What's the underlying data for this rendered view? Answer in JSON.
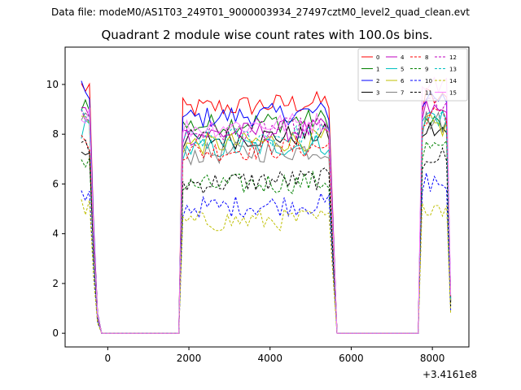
{
  "suptitle": "Data file: modeM0/AS1T03_249T01_9000003934_27497cztM0_level2_quad_clean.evt",
  "chart_data": {
    "type": "line",
    "title": "Quadrant 2 module wise count rates with 100.0s bins.",
    "xlabel": "",
    "ylabel": "",
    "x_offset_label": "+3.4161e8",
    "xlim": [
      -1050,
      8900
    ],
    "ylim": [
      -0.55,
      11.5
    ],
    "xticks": [
      0,
      2000,
      4000,
      6000,
      8000
    ],
    "xtick_labels": [
      "0",
      "2000",
      "4000",
      "6000",
      "8000"
    ],
    "yticks": [
      0,
      2,
      4,
      6,
      8,
      10
    ],
    "ytick_labels": [
      "0",
      "2",
      "4",
      "6",
      "8",
      "10"
    ],
    "grid": false,
    "legend": {
      "placement": "top-right",
      "columns": 4
    },
    "segments": [
      {
        "x_start": -650,
        "x_end": 1750
      },
      {
        "x_start": 1850,
        "x_end": 7650
      },
      {
        "x_start": 7750,
        "x_end": 8450
      }
    ],
    "segment_shape": [
      {
        "x": -650,
        "f": 1
      },
      {
        "x": -550,
        "f": 1
      },
      {
        "x": -450,
        "f": 1
      },
      {
        "x": -350,
        "f": 0.45
      },
      {
        "x": -250,
        "f": 0.08
      },
      {
        "x": -150,
        "f": 0
      },
      {
        "x": 1750,
        "f": 0
      },
      {
        "x": 1850,
        "f": 0.97
      },
      {
        "x": 5450,
        "f": 1
      },
      {
        "x": 5550,
        "f": 0.5
      },
      {
        "x": 5650,
        "f": 0
      },
      {
        "x": 7650,
        "f": 0
      },
      {
        "x": 7750,
        "f": 0.94
      },
      {
        "x": 7850,
        "f": 1
      },
      {
        "x": 8350,
        "f": 0.98
      },
      {
        "x": 8450,
        "f": 0.15
      }
    ],
    "series": [
      {
        "name": "0",
        "color": "#ff0000",
        "dash": "solid",
        "level_first": 9.9,
        "level_mid": 9.3,
        "level_last": 9.5
      },
      {
        "name": "1",
        "color": "#008000",
        "dash": "solid",
        "level_first": 9.3,
        "level_mid": 8.6,
        "level_last": 8.5
      },
      {
        "name": "2",
        "color": "#0000ff",
        "dash": "solid",
        "level_first": 9.7,
        "level_mid": 8.9,
        "level_last": 9.6
      },
      {
        "name": "3",
        "color": "#000000",
        "dash": "solid",
        "level_first": 7.4,
        "level_mid": 8.0,
        "level_last": 8.2
      },
      {
        "name": "4",
        "color": "#bf00bf",
        "dash": "solid",
        "level_first": 8.9,
        "level_mid": 8.2,
        "level_last": 9.0
      },
      {
        "name": "5",
        "color": "#00bfbf",
        "dash": "solid",
        "level_first": 8.2,
        "level_mid": 7.6,
        "level_last": 8.8
      },
      {
        "name": "6",
        "color": "#bfbf00",
        "dash": "solid",
        "level_first": 8.6,
        "level_mid": 7.8,
        "level_last": 8.4
      },
      {
        "name": "7",
        "color": "#808080",
        "dash": "solid",
        "level_first": 8.7,
        "level_mid": 7.4,
        "level_last": 8.6
      },
      {
        "name": "8",
        "color": "#ff0000",
        "dash": "dashed",
        "level_first": 7.8,
        "level_mid": 7.5,
        "level_last": 8.8
      },
      {
        "name": "9",
        "color": "#008000",
        "dash": "dashed",
        "level_first": 7.0,
        "level_mid": 6.1,
        "level_last": 7.5
      },
      {
        "name": "10",
        "color": "#0000ff",
        "dash": "dashed",
        "level_first": 5.5,
        "level_mid": 5.2,
        "level_last": 6.1
      },
      {
        "name": "11",
        "color": "#000000",
        "dash": "dashed",
        "level_first": 7.4,
        "level_mid": 6.2,
        "level_last": 7.2
      },
      {
        "name": "12",
        "color": "#bf00bf",
        "dash": "dashed",
        "level_first": 8.8,
        "level_mid": 8.3,
        "level_last": 9.3
      },
      {
        "name": "13",
        "color": "#00bfbf",
        "dash": "dashed",
        "level_first": 8.6,
        "level_mid": 8.0,
        "level_last": 8.8
      },
      {
        "name": "14",
        "color": "#bfbf00",
        "dash": "dashed",
        "level_first": 5.0,
        "level_mid": 4.6,
        "level_last": 5.2
      },
      {
        "name": "15",
        "color": "#ff80ff",
        "dash": "solid",
        "level_first": 8.8,
        "level_mid": 8.5,
        "level_last": 10.2
      }
    ]
  }
}
